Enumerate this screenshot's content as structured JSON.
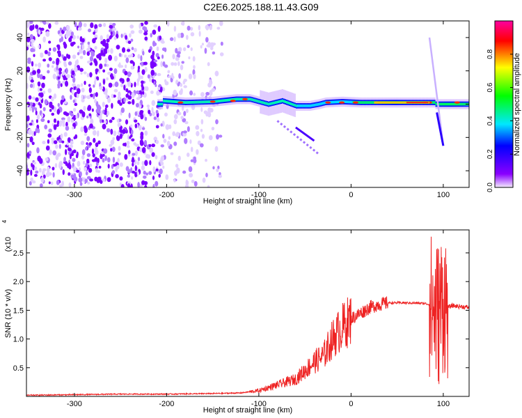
{
  "title": "C2E6.2025.188.11.43.G09",
  "chart_data": [
    {
      "type": "heatmap",
      "xlabel": "Height of straight line (km)",
      "ylabel": "Frequency (Hz)",
      "xlim": [
        -352,
        128
      ],
      "ylim": [
        -50,
        50
      ],
      "xticks": [
        -300,
        -200,
        -100,
        0,
        100
      ],
      "yticks": [
        -40,
        -20,
        0,
        20,
        40
      ],
      "colorbar": {
        "label": "Normalized spectral amplitude",
        "range": [
          0,
          1
        ],
        "ticks": [
          "0.0",
          "0.2",
          "0.4",
          "0.6",
          "0.8"
        ],
        "colors": [
          "#f4ecff",
          "#8a00ff",
          "#0000ff",
          "#00e8ff",
          "#00ff00",
          "#ffff00",
          "#ff0000",
          "#ff00a0"
        ]
      },
      "trace": {
        "x": [
          -205,
          -180,
          -150,
          -125,
          -110,
          -90,
          -75,
          -60,
          -45,
          -35,
          -28,
          -10,
          10,
          40,
          80,
          90
        ],
        "y": [
          2,
          1,
          1.5,
          3,
          3,
          0,
          2,
          -1,
          -1,
          0,
          1,
          1.5,
          1,
          1,
          1,
          1
        ]
      },
      "background_noise_x_range": [
        -352,
        -140
      ]
    },
    {
      "type": "line",
      "xlabel": "Height of straight line (km)",
      "ylabel": "SNR (10 * v/v)",
      "y_scale_label": "(x10",
      "y_scale_exponent": "4",
      "xlim": [
        -352,
        128
      ],
      "ylim": [
        0,
        2.9
      ],
      "xticks": [
        -300,
        -200,
        -100,
        0,
        100
      ],
      "yticks": [
        "0.5",
        "1.0",
        "1.5",
        "2.0",
        "2.5"
      ],
      "color": "#ee2222",
      "series": [
        {
          "x": [
            -352,
            -300,
            -250,
            -200,
            -150,
            -120,
            -100,
            -80,
            -60,
            -50,
            -40,
            -30,
            -25,
            -20,
            -10,
            0,
            10,
            20,
            30,
            40,
            60,
            80,
            85,
            90,
            95,
            100,
            105,
            110,
            128
          ],
          "y": [
            0.02,
            0.03,
            0.04,
            0.04,
            0.05,
            0.06,
            0.1,
            0.2,
            0.3,
            0.45,
            0.6,
            0.7,
            0.85,
            1.0,
            1.2,
            1.35,
            1.45,
            1.55,
            1.6,
            1.63,
            1.63,
            1.62,
            1.6,
            1.5,
            1.45,
            1.7,
            1.55,
            1.58,
            1.55
          ]
        }
      ]
    }
  ]
}
